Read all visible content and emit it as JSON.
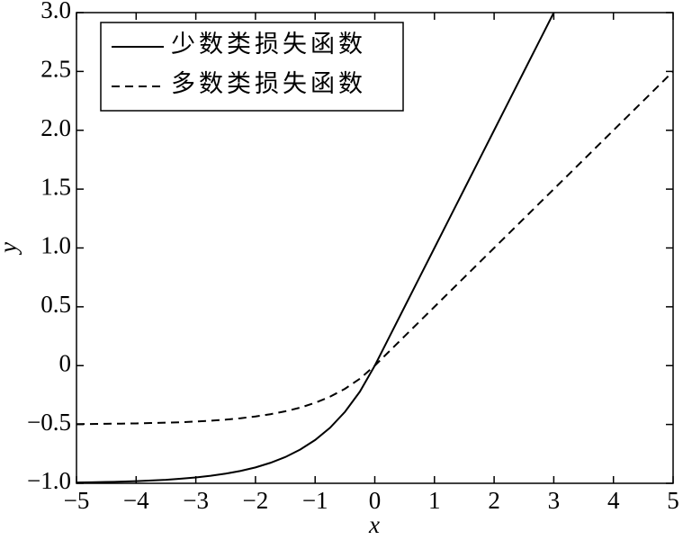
{
  "chart_data": {
    "type": "line",
    "x_label": "x",
    "y_label": "y",
    "x": [
      -5,
      -4.75,
      -4.5,
      -4.25,
      -4,
      -3.75,
      -3.5,
      -3.25,
      -3,
      -2.75,
      -2.5,
      -2.25,
      -2,
      -1.75,
      -1.5,
      -1.25,
      -1,
      -0.75,
      -0.5,
      -0.25,
      0,
      0.25,
      0.5,
      0.75,
      1,
      1.25,
      1.5,
      1.75,
      2,
      2.25,
      2.5,
      2.75,
      3,
      3.25,
      3.5,
      3.75,
      4,
      4.25,
      4.5,
      4.75,
      5
    ],
    "series": [
      {
        "name": "少数类损失函数",
        "color": "#000000",
        "dash": "solid",
        "values": [
          -0.993,
          -0.991,
          -0.989,
          -0.986,
          -0.982,
          -0.976,
          -0.97,
          -0.961,
          -0.95,
          -0.936,
          -0.918,
          -0.895,
          -0.865,
          -0.826,
          -0.777,
          -0.713,
          -0.632,
          -0.528,
          -0.393,
          -0.221,
          0,
          0.25,
          0.5,
          0.75,
          1,
          1.25,
          1.5,
          1.75,
          2,
          2.25,
          2.5,
          2.75,
          3,
          null,
          null,
          null,
          null,
          null,
          null,
          null,
          null
        ]
      },
      {
        "name": "多数类损失函数",
        "color": "#000000",
        "dash": "dashed",
        "values": [
          -0.497,
          -0.496,
          -0.494,
          -0.493,
          -0.491,
          -0.488,
          -0.485,
          -0.481,
          -0.475,
          -0.468,
          -0.459,
          -0.447,
          -0.432,
          -0.413,
          -0.388,
          -0.357,
          -0.316,
          -0.264,
          -0.197,
          -0.111,
          0,
          0.125,
          0.25,
          0.375,
          0.5,
          0.625,
          0.75,
          0.875,
          1,
          1.125,
          1.25,
          1.375,
          1.5,
          1.625,
          1.75,
          1.875,
          2,
          2.125,
          2.25,
          2.375,
          2.5
        ]
      }
    ],
    "xlim": [
      -5,
      5
    ],
    "xticks": [
      {
        "value": -5,
        "label": "−5"
      },
      {
        "value": -4,
        "label": "−4"
      },
      {
        "value": -3,
        "label": "−3"
      },
      {
        "value": -2,
        "label": "−2"
      },
      {
        "value": -1,
        "label": "−1"
      },
      0,
      1,
      2,
      3,
      4,
      5
    ],
    "ylim": [
      -1,
      3
    ],
    "yticks": [
      {
        "value": -1,
        "label": "−1.0"
      },
      {
        "value": -0.5,
        "label": "−0.5"
      },
      0,
      0.5,
      {
        "value": 1,
        "label": "1.0"
      },
      1.5,
      {
        "value": 2,
        "label": "2.0"
      },
      2.5,
      {
        "value": 3,
        "label": "3.0"
      }
    ],
    "legend": "upper left"
  }
}
